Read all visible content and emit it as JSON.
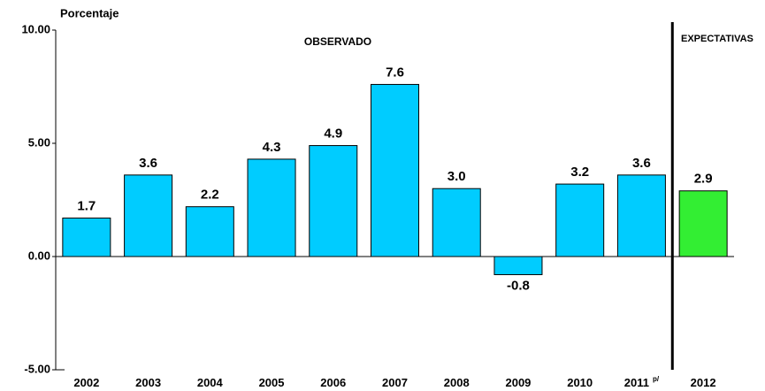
{
  "chart_data": {
    "type": "bar",
    "y_label": "Porcentaje",
    "annotations": [
      "OBSERVADO",
      "EXPECTATIVAS"
    ],
    "categories": [
      "2002",
      "2003",
      "2004",
      "2005",
      "2006",
      "2007",
      "2008",
      "2009",
      "2010",
      "2011",
      "2012"
    ],
    "category_superscripts": [
      null,
      null,
      null,
      null,
      null,
      null,
      null,
      null,
      null,
      "p/",
      null
    ],
    "values": [
      1.7,
      3.6,
      2.2,
      4.3,
      4.9,
      7.6,
      3.0,
      -0.8,
      3.2,
      3.6,
      2.9
    ],
    "value_labels": [
      "1.7",
      "3.6",
      "2.2",
      "4.3",
      "4.9",
      "7.6",
      "3.0",
      "-0.8",
      "3.2",
      "3.6",
      "2.9"
    ],
    "colors": [
      "#00ccff",
      "#00ccff",
      "#00ccff",
      "#00ccff",
      "#00ccff",
      "#00ccff",
      "#00ccff",
      "#00ccff",
      "#00ccff",
      "#00ccff",
      "#33ee33"
    ],
    "ylim": [
      -5,
      10
    ],
    "yticks": [
      {
        "value": -5,
        "label": "-5.00"
      },
      {
        "value": 0,
        "label": "0.00"
      },
      {
        "value": 5,
        "label": "5.00"
      },
      {
        "value": 10,
        "label": "10.00"
      }
    ]
  }
}
